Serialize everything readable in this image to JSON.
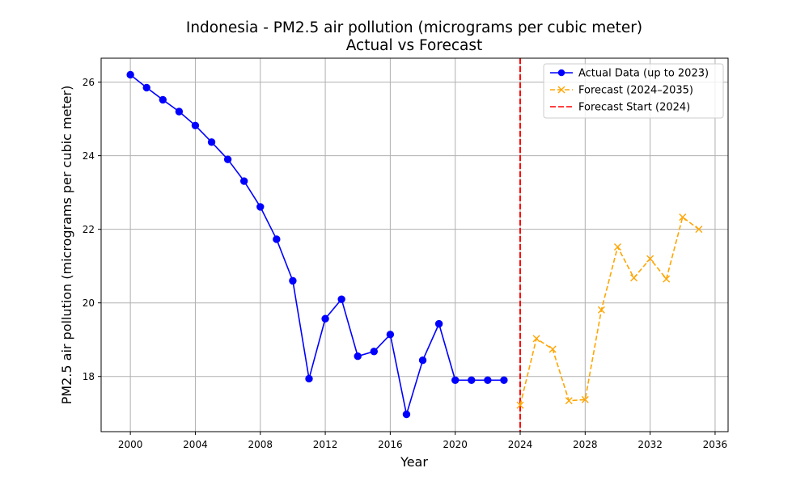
{
  "chart_data": {
    "type": "line",
    "title": "Indonesia - PM2.5 air pollution (micrograms per cubic meter)",
    "subtitle": "Actual vs Forecast",
    "xlabel": "Year",
    "ylabel": "PM2.5 air pollution (micrograms per cubic meter)",
    "xlim": [
      1998.2,
      2036.8
    ],
    "ylim": [
      16.5,
      26.65
    ],
    "xticks": [
      2000,
      2004,
      2008,
      2012,
      2016,
      2020,
      2024,
      2028,
      2032,
      2036
    ],
    "yticks": [
      18,
      20,
      22,
      24,
      26
    ],
    "grid": true,
    "legend_position": "top-right",
    "colors": {
      "actual": "#0000ff",
      "forecast": "#ffa500",
      "forecast_start": "#ff0000",
      "grid": "#b0b0b0"
    },
    "series": [
      {
        "name": "Actual Data (up to 2023)",
        "style": "solid",
        "marker": "circle",
        "x": [
          2000,
          2001,
          2002,
          2003,
          2004,
          2005,
          2006,
          2007,
          2008,
          2009,
          2010,
          2011,
          2012,
          2013,
          2014,
          2015,
          2016,
          2017,
          2018,
          2019,
          2020,
          2021,
          2022,
          2023
        ],
        "y": [
          26.2,
          25.85,
          25.52,
          25.2,
          24.82,
          24.37,
          23.9,
          23.31,
          22.61,
          21.73,
          20.6,
          17.94,
          19.57,
          20.1,
          18.55,
          18.68,
          19.14,
          16.97,
          18.44,
          19.43,
          17.9,
          17.9,
          17.9,
          17.9
        ]
      },
      {
        "name": "Forecast (2024–2035)",
        "style": "dashed",
        "marker": "x",
        "x": [
          2024,
          2025,
          2026,
          2027,
          2028,
          2029,
          2030,
          2031,
          2032,
          2033,
          2034,
          2035
        ],
        "y": [
          17.22,
          19.03,
          18.74,
          17.34,
          17.37,
          19.81,
          21.52,
          20.68,
          21.2,
          20.65,
          22.33,
          22.0
        ]
      }
    ],
    "vline": {
      "name": "Forecast Start (2024)",
      "x": 2024,
      "style": "dashed"
    }
  }
}
